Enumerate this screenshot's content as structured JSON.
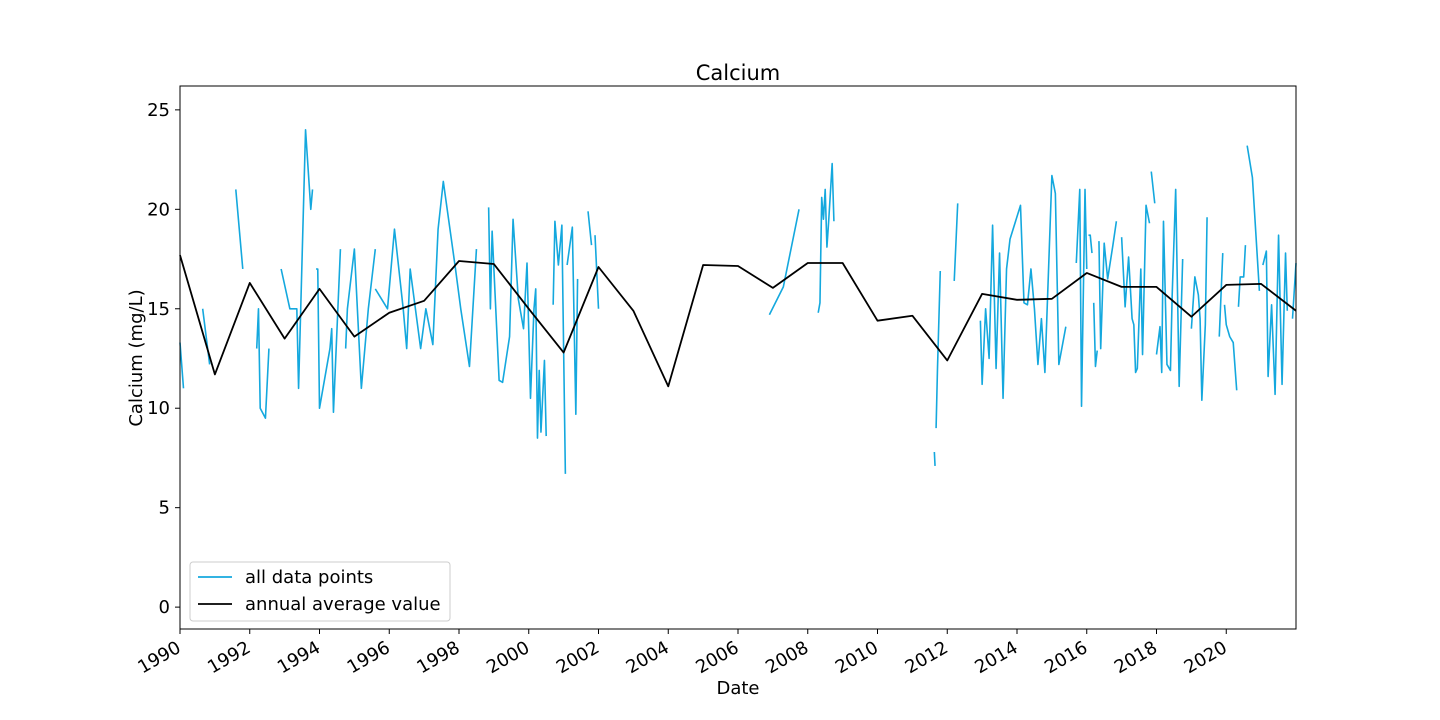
{
  "chart_data": {
    "type": "line",
    "title": "Calcium",
    "xlabel": "Date",
    "ylabel": "Calcium (mg/L)",
    "xlim": [
      1990,
      2022
    ],
    "xticks": [
      1990,
      1992,
      1994,
      1996,
      1998,
      2000,
      2002,
      2004,
      2006,
      2008,
      2010,
      2012,
      2014,
      2016,
      2018,
      2020
    ],
    "ylim": [
      -1.1,
      26.2
    ],
    "yticks": [
      0,
      5,
      10,
      15,
      20,
      25
    ],
    "grid": false,
    "legend": "lower left",
    "series": [
      {
        "name": "all data points",
        "color": "#14a8de",
        "x": [
          1990.0,
          1990.1,
          null,
          1990.65,
          1990.85,
          null,
          1991.6,
          1991.8,
          null,
          1992.2,
          1992.25,
          1992.3,
          1992.45,
          1992.55,
          null,
          1992.9,
          1993.15,
          1993.35,
          1993.4,
          1993.6,
          1993.75,
          1993.8,
          null,
          1993.9,
          1993.95,
          1994.0,
          1994.2,
          1994.3,
          1994.35,
          1994.4,
          1994.6,
          null,
          1994.75,
          1994.8,
          1995.0,
          1995.2,
          1995.4,
          1995.6,
          null,
          1995.6,
          1995.95,
          1996.15,
          1996.4,
          1996.5,
          1996.6,
          1996.9,
          1997.05,
          1997.25,
          1997.4,
          1997.55,
          1997.9,
          1998.05,
          1998.3,
          1998.5,
          null,
          1998.85,
          1998.9,
          1998.95,
          1999.15,
          1999.25,
          1999.45,
          1999.55,
          1999.7,
          1999.85,
          1999.95,
          2000.05,
          2000.15,
          2000.2,
          2000.25,
          2000.3,
          2000.35,
          2000.45,
          2000.5,
          null,
          2000.7,
          2000.75,
          2000.85,
          2000.95,
          2001.05,
          null,
          2001.1,
          2001.25,
          2001.35,
          2001.4,
          null,
          2001.7,
          2001.8,
          null,
          2001.9,
          2002.0,
          null,
          2006.9,
          2007.3,
          2007.75,
          null,
          2008.3,
          2008.35,
          2008.4,
          2008.45,
          2008.5,
          2008.55,
          2008.6,
          2008.7,
          2008.75,
          null,
          2011.63,
          2011.65,
          null,
          2011.68,
          2011.72,
          2011.8,
          null,
          2012.2,
          2012.3,
          null,
          2012.95,
          2013.0,
          2013.1,
          2013.2,
          2013.3,
          2013.4,
          2013.5,
          2013.6,
          2013.7,
          2013.8,
          2014.1,
          2014.2,
          2014.3,
          2014.4,
          2014.5,
          2014.6,
          2014.7,
          2014.8,
          2015.0,
          2015.1,
          2015.2,
          2015.4,
          null,
          2015.7,
          2015.8,
          2015.85,
          2015.95,
          2016.0,
          null,
          2016.05,
          2016.1,
          2016.15,
          null,
          2016.2,
          2016.25,
          2016.3,
          null,
          2016.35,
          2016.4,
          2016.5,
          2016.6,
          2016.75,
          2016.85,
          null,
          2017.0,
          2017.1,
          2017.2,
          2017.3,
          2017.35,
          2017.4,
          2017.45,
          2017.55,
          2017.6,
          2017.7,
          2017.8,
          null,
          2017.85,
          2017.95,
          null,
          2018.0,
          2018.1,
          2018.15,
          2018.2,
          2018.3,
          2018.4,
          2018.45,
          2018.55,
          2018.65,
          2018.75,
          null,
          2019.0,
          2019.1,
          2019.2,
          2019.25,
          2019.3,
          2019.4,
          2019.45,
          null,
          2019.8,
          2019.9,
          null,
          2019.95,
          2020.0,
          2020.1,
          2020.2,
          2020.3,
          null,
          2020.35,
          2020.4,
          2020.5,
          2020.55,
          null,
          2020.6,
          2020.75,
          2020.95,
          null,
          2021.05,
          2021.15,
          2021.2,
          2021.3,
          2021.4,
          2021.5,
          2021.6,
          2021.7,
          2021.75,
          null,
          2021.9,
          2022.0
        ],
        "values": [
          13.3,
          11.0,
          null,
          15.0,
          12.2,
          null,
          21.0,
          17.0,
          null,
          13.0,
          15.0,
          10.0,
          9.5,
          13.0,
          null,
          17.0,
          15.0,
          15.0,
          11.0,
          24.0,
          20.0,
          21.0,
          null,
          17.0,
          17.0,
          10.0,
          12.0,
          13.0,
          14.0,
          9.8,
          18.0,
          null,
          13.0,
          15.0,
          18.0,
          11.0,
          15.0,
          18.0,
          null,
          16.0,
          15.0,
          19.0,
          15.0,
          13.0,
          17.0,
          13.0,
          15.0,
          13.2,
          19.0,
          21.4,
          17.0,
          15.0,
          12.1,
          18.0,
          null,
          20.1,
          15.0,
          18.9,
          11.4,
          11.3,
          13.6,
          19.5,
          15.5,
          14.0,
          17.3,
          10.5,
          15.0,
          16.0,
          8.5,
          11.9,
          8.8,
          12.4,
          8.6,
          null,
          15.2,
          19.4,
          17.2,
          19.2,
          6.7,
          null,
          17.2,
          19.1,
          9.7,
          16.5,
          null,
          19.9,
          18.2,
          null,
          18.7,
          15.0,
          null,
          14.7,
          16.1,
          20.0,
          null,
          14.8,
          15.3,
          20.6,
          19.5,
          21.0,
          18.1,
          19.4,
          22.3,
          19.4,
          null,
          7.8,
          7.1,
          null,
          9.0,
          12.0,
          16.9,
          null,
          16.4,
          20.3,
          null,
          14.4,
          11.2,
          15.0,
          12.5,
          19.2,
          12.0,
          17.8,
          10.5,
          17.0,
          18.5,
          20.2,
          15.3,
          15.2,
          17.0,
          15.0,
          12.2,
          14.5,
          11.8,
          21.7,
          20.8,
          12.2,
          14.1,
          null,
          17.3,
          21.0,
          10.1,
          21.0,
          17.0,
          null,
          18.7,
          18.7,
          17.8,
          null,
          15.3,
          12.1,
          12.9,
          null,
          18.4,
          13.0,
          18.3,
          16.5,
          18.2,
          19.4,
          null,
          18.6,
          15.1,
          17.6,
          14.5,
          14.2,
          11.8,
          12.0,
          17.0,
          12.7,
          20.2,
          19.3,
          null,
          21.9,
          20.3,
          null,
          12.7,
          14.1,
          11.8,
          19.4,
          12.2,
          11.9,
          15.7,
          21.0,
          11.1,
          17.5,
          null,
          14.0,
          16.6,
          15.7,
          14.5,
          10.4,
          14.2,
          19.6,
          null,
          13.6,
          17.8,
          null,
          15.2,
          14.2,
          13.6,
          13.3,
          10.9,
          null,
          15.1,
          16.6,
          16.6,
          18.2,
          null,
          23.2,
          21.6,
          15.9,
          null,
          17.2,
          17.9,
          11.6,
          15.2,
          10.7,
          18.7,
          11.2,
          17.8,
          14.9,
          null,
          14.5,
          17.3
        ]
      },
      {
        "name": "annual average value",
        "color": "#000000",
        "x": [
          1990,
          1991,
          1992,
          1993,
          1994,
          1995,
          1996,
          1997,
          1998,
          1999,
          2000,
          2001,
          2002,
          2003,
          2004,
          2005,
          2006,
          2007,
          2008,
          2009,
          2010,
          2011,
          2012,
          2013,
          2014,
          2015,
          2016,
          2017,
          2018,
          2019,
          2020,
          2021,
          2022
        ],
        "values": [
          17.7,
          11.7,
          16.3,
          13.5,
          16.0,
          13.6,
          14.8,
          15.4,
          17.4,
          17.25,
          15.0,
          12.8,
          17.1,
          14.9,
          11.1,
          17.2,
          17.15,
          16.05,
          17.3,
          17.3,
          14.4,
          14.65,
          12.4,
          15.75,
          15.45,
          15.5,
          16.8,
          16.1,
          16.1,
          14.6,
          16.2,
          16.25,
          14.9
        ]
      }
    ]
  }
}
